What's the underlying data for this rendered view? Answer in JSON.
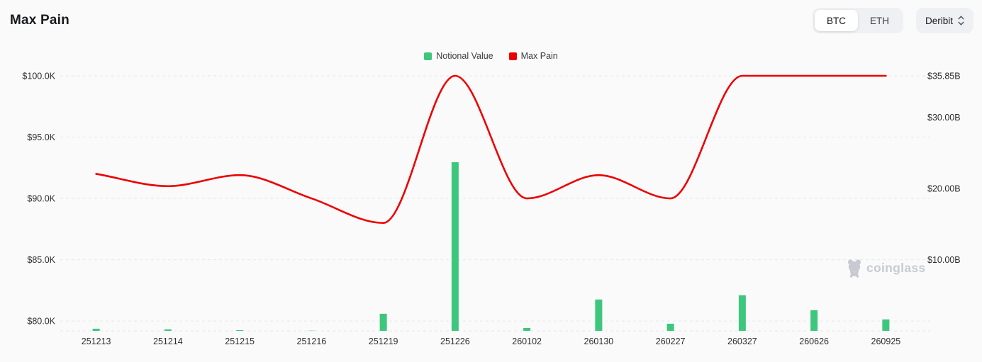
{
  "header": {
    "title": "Max Pain"
  },
  "controls": {
    "coin_toggle": {
      "options": [
        "BTC",
        "ETH"
      ],
      "selected": "BTC"
    },
    "exchange_select": {
      "value": "Deribit"
    }
  },
  "legend": [
    {
      "label": "Notional Value",
      "color": "#3ec67d"
    },
    {
      "label": "Max Pain",
      "color": "#ec0101"
    }
  ],
  "watermark": {
    "text": "coinglass"
  },
  "chart_data": {
    "type": "bar+line",
    "title": "Max Pain",
    "legend_position": "top-center",
    "grid": "horizontal-dashed",
    "categories": [
      "251213",
      "251214",
      "251215",
      "251216",
      "251219",
      "251226",
      "260102",
      "260130",
      "260227",
      "260327",
      "260626",
      "260925"
    ],
    "series": [
      {
        "name": "Notional Value",
        "type": "bar",
        "y_axis": "right",
        "color": "#3ec67d",
        "values": [
          0.3,
          0.2,
          0.1,
          0.03,
          2.4,
          23.7,
          0.4,
          4.4,
          1.0,
          5.0,
          2.9,
          1.6
        ]
      },
      {
        "name": "Max Pain",
        "type": "line",
        "y_axis": "left",
        "color": "#ec0101",
        "values": [
          92.0,
          91.0,
          91.9,
          90.0,
          88.0,
          100.0,
          90.0,
          91.9,
          90.0,
          100.0,
          100.0,
          100.0
        ]
      }
    ],
    "left_axis": {
      "unit": "USD thousands",
      "min": 79.2,
      "max": 100,
      "ticks": [
        {
          "label": "$100.0K",
          "value": 100
        },
        {
          "label": "$95.0K",
          "value": 95
        },
        {
          "label": "$90.0K",
          "value": 90
        },
        {
          "label": "$85.0K",
          "value": 85
        },
        {
          "label": "$80.0K",
          "value": 80
        }
      ]
    },
    "right_axis": {
      "unit": "USD billions",
      "min": 0,
      "max": 35.85,
      "ticks": [
        {
          "label": "$35.85B",
          "value": 35.85
        },
        {
          "label": "$30.00B",
          "value": 30
        },
        {
          "label": "$20.00B",
          "value": 20
        },
        {
          "label": "$10.00B",
          "value": 10
        }
      ]
    }
  }
}
